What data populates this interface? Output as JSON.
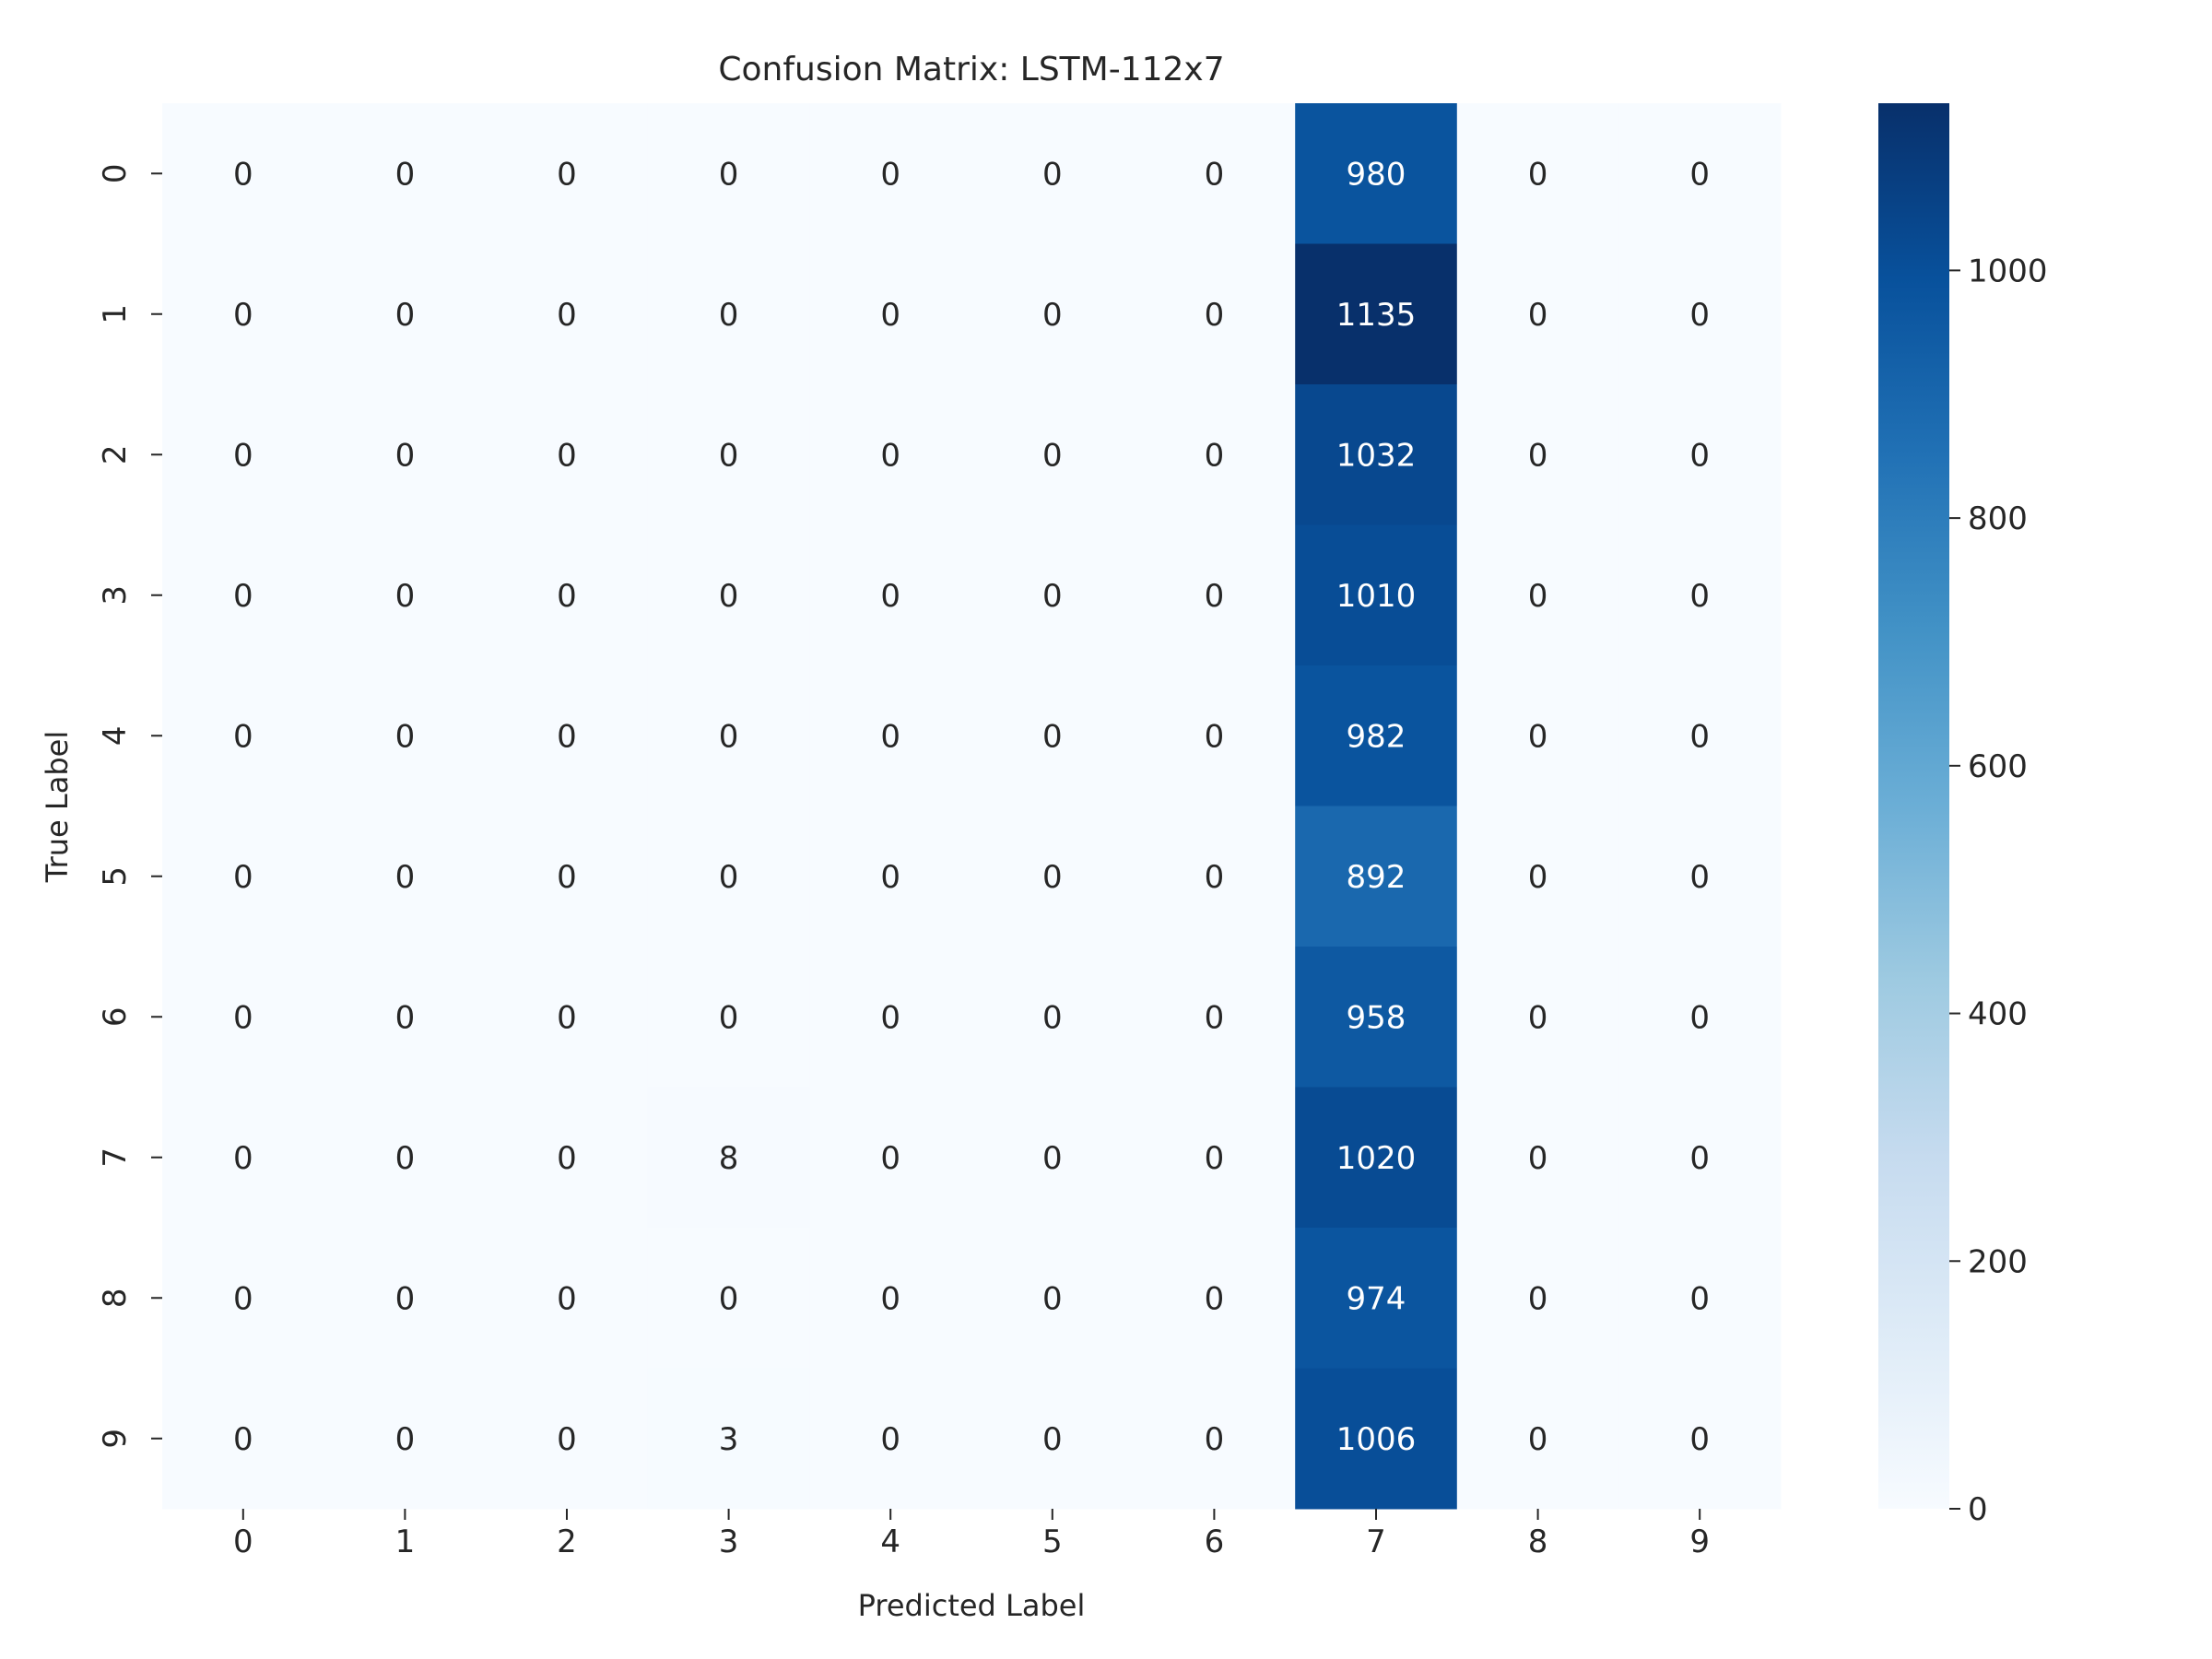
{
  "chart_data": {
    "type": "heatmap",
    "title": "Confusion Matrix: LSTM-112x7",
    "xlabel": "Predicted Label",
    "ylabel": "True Label",
    "x_categories": [
      "0",
      "1",
      "2",
      "3",
      "4",
      "5",
      "6",
      "7",
      "8",
      "9"
    ],
    "y_categories": [
      "0",
      "1",
      "2",
      "3",
      "4",
      "5",
      "6",
      "7",
      "8",
      "9"
    ],
    "values": [
      [
        0,
        0,
        0,
        0,
        0,
        0,
        0,
        980,
        0,
        0
      ],
      [
        0,
        0,
        0,
        0,
        0,
        0,
        0,
        1135,
        0,
        0
      ],
      [
        0,
        0,
        0,
        0,
        0,
        0,
        0,
        1032,
        0,
        0
      ],
      [
        0,
        0,
        0,
        0,
        0,
        0,
        0,
        1010,
        0,
        0
      ],
      [
        0,
        0,
        0,
        0,
        0,
        0,
        0,
        982,
        0,
        0
      ],
      [
        0,
        0,
        0,
        0,
        0,
        0,
        0,
        892,
        0,
        0
      ],
      [
        0,
        0,
        0,
        0,
        0,
        0,
        0,
        958,
        0,
        0
      ],
      [
        0,
        0,
        0,
        8,
        0,
        0,
        0,
        1020,
        0,
        0
      ],
      [
        0,
        0,
        0,
        0,
        0,
        0,
        0,
        974,
        0,
        0
      ],
      [
        0,
        0,
        0,
        3,
        0,
        0,
        0,
        1006,
        0,
        0
      ]
    ],
    "colormap": "Blues",
    "colorbar": {
      "min": 0,
      "max": 1135,
      "ticks": [
        0,
        200,
        400,
        600,
        800,
        1000
      ]
    }
  }
}
